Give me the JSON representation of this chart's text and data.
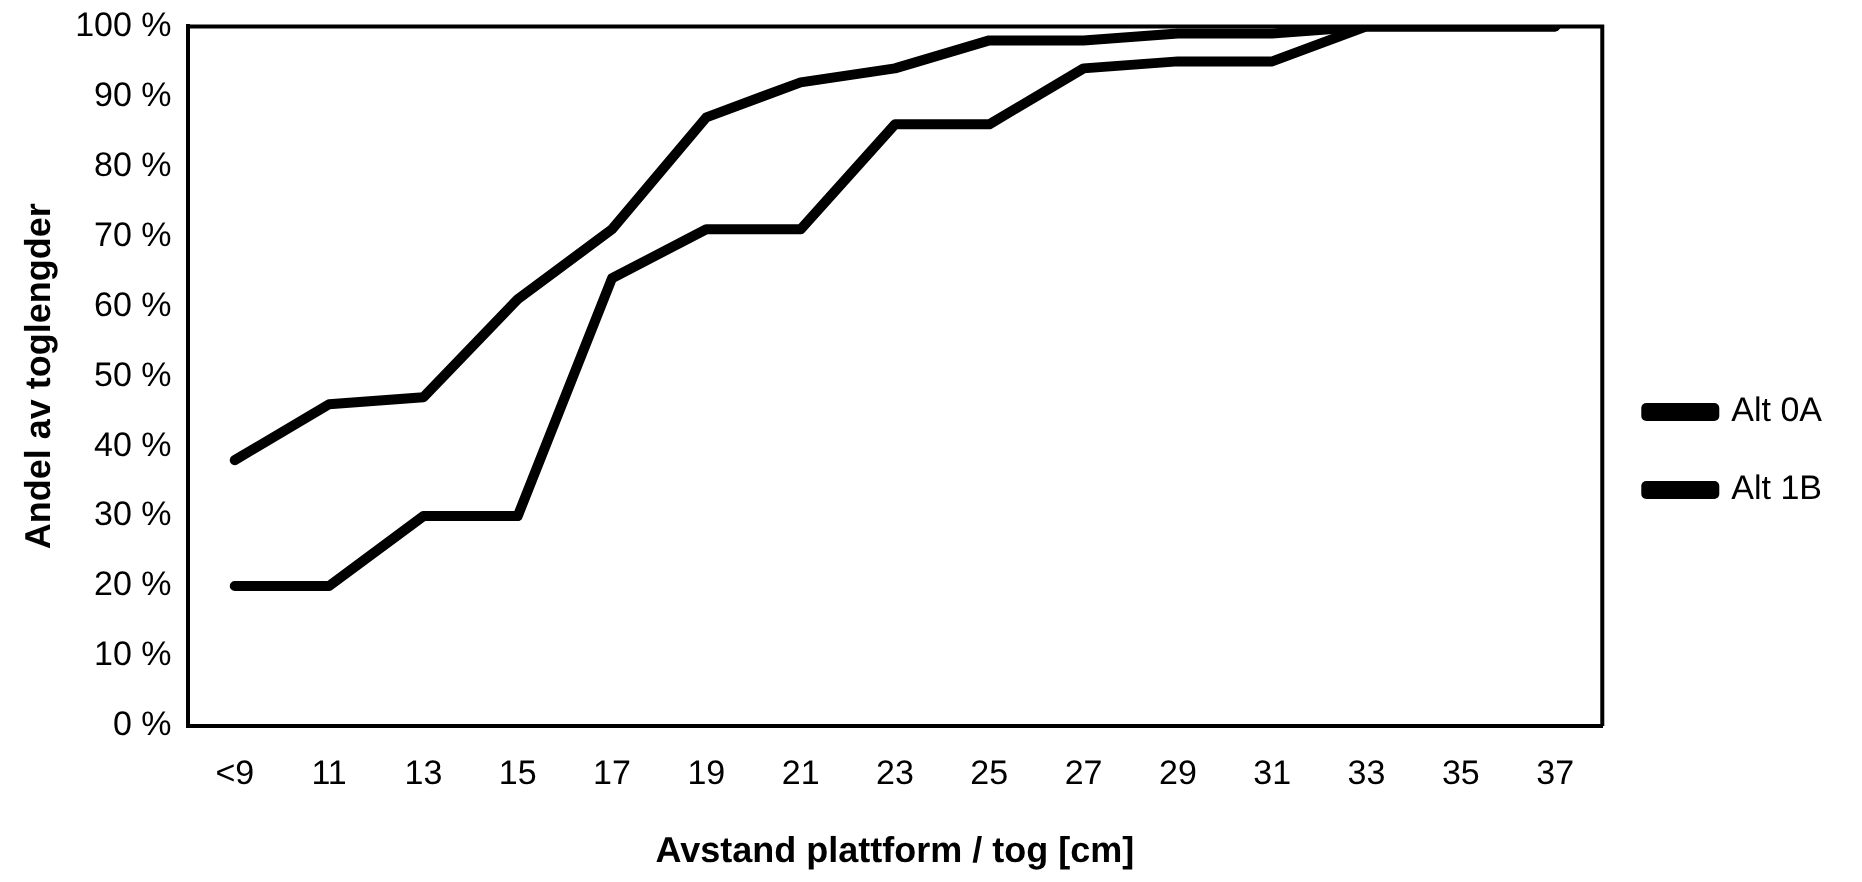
{
  "chart_data": {
    "type": "line",
    "xlabel": "Avstand plattform / tog [cm]",
    "ylabel": "Andel av toglengder",
    "categories": [
      "<9",
      "11",
      "13",
      "15",
      "17",
      "19",
      "21",
      "23",
      "25",
      "27",
      "29",
      "31",
      "33",
      "35",
      "37"
    ],
    "series": [
      {
        "name": "Alt 0A",
        "color": "#000000",
        "values": [
          38,
          46,
          47,
          61,
          71,
          87,
          92,
          94,
          98,
          98,
          99,
          99,
          100,
          100,
          100
        ]
      },
      {
        "name": "Alt 1B",
        "color": "#000000",
        "values": [
          20,
          20,
          30,
          30,
          64,
          71,
          71,
          86,
          86,
          94,
          95,
          95,
          100,
          100,
          100
        ]
      }
    ],
    "ylim": [
      0,
      100
    ],
    "yticks": [
      {
        "value": 0,
        "label": "0 %"
      },
      {
        "value": 10,
        "label": "10 %"
      },
      {
        "value": 20,
        "label": "20 %"
      },
      {
        "value": 30,
        "label": "30 %"
      },
      {
        "value": 40,
        "label": "40 %"
      },
      {
        "value": 50,
        "label": "50 %"
      },
      {
        "value": 60,
        "label": "60 %"
      },
      {
        "value": 70,
        "label": "70 %"
      },
      {
        "value": 80,
        "label": "80 %"
      },
      {
        "value": 90,
        "label": "90 %"
      },
      {
        "value": 100,
        "label": "100 %"
      }
    ],
    "grid": false,
    "legend": "right",
    "marker": "none",
    "line_style": "solid"
  }
}
